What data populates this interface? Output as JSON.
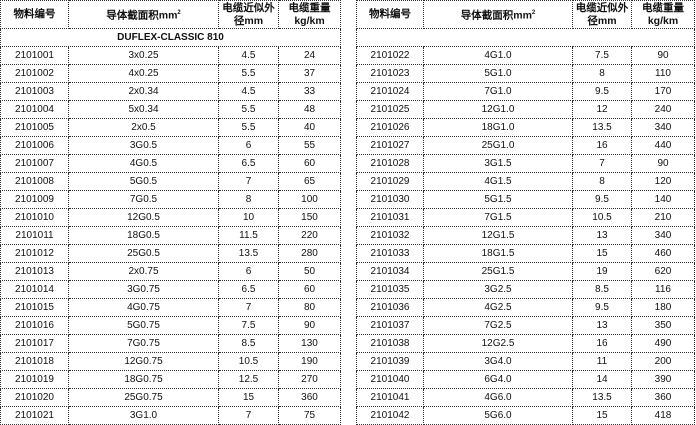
{
  "headers": {
    "code": "物料编号",
    "section": "导体截面积mm",
    "section_sup": "2",
    "diameter": "电缆近似外径mm",
    "weight": "电缆重量 kg/km"
  },
  "series_title": "DUFLEX-CLASSIC 810",
  "left_rows": [
    [
      "2101001",
      "3x0.25",
      "4.5",
      "24"
    ],
    [
      "2101002",
      "4x0.25",
      "5.5",
      "37"
    ],
    [
      "2101003",
      "2x0.34",
      "4.5",
      "33"
    ],
    [
      "2101004",
      "5x0.34",
      "5.5",
      "48"
    ],
    [
      "2101005",
      "2x0.5",
      "5.5",
      "40"
    ],
    [
      "2101006",
      "3G0.5",
      "6",
      "55"
    ],
    [
      "2101007",
      "4G0.5",
      "6.5",
      "60"
    ],
    [
      "2101008",
      "5G0.5",
      "7",
      "65"
    ],
    [
      "2101009",
      "7G0.5",
      "8",
      "100"
    ],
    [
      "2101010",
      "12G0.5",
      "10",
      "150"
    ],
    [
      "2101011",
      "18G0.5",
      "11.5",
      "220"
    ],
    [
      "2101012",
      "25G0.5",
      "13.5",
      "280"
    ],
    [
      "2101013",
      "2x0.75",
      "6",
      "50"
    ],
    [
      "2101014",
      "3G0.75",
      "6.5",
      "60"
    ],
    [
      "2101015",
      "4G0.75",
      "7",
      "80"
    ],
    [
      "2101016",
      "5G0.75",
      "7.5",
      "90"
    ],
    [
      "2101017",
      "7G0.75",
      "8.5",
      "130"
    ],
    [
      "2101018",
      "12G0.75",
      "10.5",
      "190"
    ],
    [
      "2101019",
      "18G0.75",
      "12.5",
      "270"
    ],
    [
      "2101020",
      "25G0.75",
      "15",
      "360"
    ],
    [
      "2101021",
      "3G1.0",
      "7",
      "75"
    ]
  ],
  "right_rows": [
    [
      "2101022",
      "4G1.0",
      "7.5",
      "90"
    ],
    [
      "2101023",
      "5G1.0",
      "8",
      "110"
    ],
    [
      "2101024",
      "7G1.0",
      "9.5",
      "170"
    ],
    [
      "2101025",
      "12G1.0",
      "12",
      "240"
    ],
    [
      "2101026",
      "18G1.0",
      "13.5",
      "340"
    ],
    [
      "2101027",
      "25G1.0",
      "16",
      "440"
    ],
    [
      "2101028",
      "3G1.5",
      "7",
      "90"
    ],
    [
      "2101029",
      "4G1.5",
      "8",
      "120"
    ],
    [
      "2101030",
      "5G1.5",
      "9.5",
      "140"
    ],
    [
      "2101031",
      "7G1.5",
      "10.5",
      "210"
    ],
    [
      "2101032",
      "12G1.5",
      "13",
      "340"
    ],
    [
      "2101033",
      "18G1.5",
      "15",
      "460"
    ],
    [
      "2101034",
      "25G1.5",
      "19",
      "620"
    ],
    [
      "2101035",
      "3G2.5",
      "8.5",
      "116"
    ],
    [
      "2101036",
      "4G2.5",
      "9.5",
      "180"
    ],
    [
      "2101037",
      "7G2.5",
      "13",
      "350"
    ],
    [
      "2101038",
      "12G2.5",
      "16",
      "490"
    ],
    [
      "2101039",
      "3G4.0",
      "11",
      "200"
    ],
    [
      "2101040",
      "6G4.0",
      "14",
      "390"
    ],
    [
      "2101041",
      "4G6.0",
      "13.5",
      "360"
    ],
    [
      "2101042",
      "5G6.0",
      "15",
      "418"
    ]
  ]
}
